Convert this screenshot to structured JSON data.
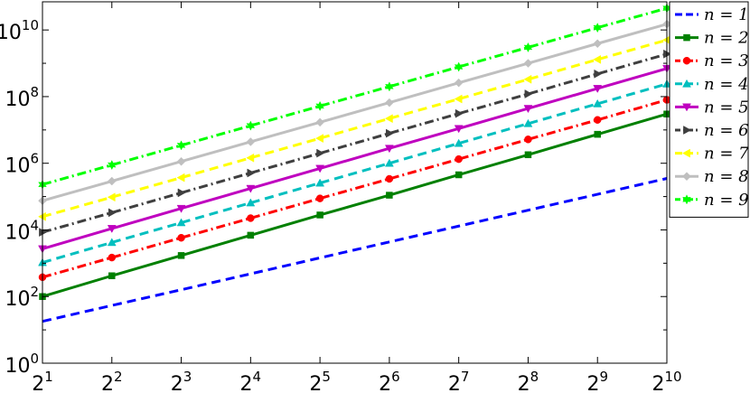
{
  "chart_data": {
    "type": "line",
    "title": "",
    "xlabel": "",
    "ylabel": "",
    "xscale": "log2",
    "yscale": "log10",
    "x": [
      2,
      4,
      8,
      16,
      32,
      64,
      128,
      256,
      512,
      1024
    ],
    "xlim": [
      2,
      1024
    ],
    "ylim": [
      1,
      70000000000
    ],
    "x_tick_labels": [
      {
        "base": "2",
        "exp": "1"
      },
      {
        "base": "2",
        "exp": "2"
      },
      {
        "base": "2",
        "exp": "3"
      },
      {
        "base": "2",
        "exp": "4"
      },
      {
        "base": "2",
        "exp": "5"
      },
      {
        "base": "2",
        "exp": "6"
      },
      {
        "base": "2",
        "exp": "7"
      },
      {
        "base": "2",
        "exp": "8"
      },
      {
        "base": "2",
        "exp": "9"
      },
      {
        "base": "2",
        "exp": "10"
      }
    ],
    "y_tick_labels": [
      {
        "value": 1,
        "base": "10",
        "exp": "0"
      },
      {
        "value": 100,
        "base": "10",
        "exp": "2"
      },
      {
        "value": 10000,
        "base": "10",
        "exp": "4"
      },
      {
        "value": 1000000,
        "base": "10",
        "exp": "6"
      },
      {
        "value": 100000000,
        "base": "10",
        "exp": "8"
      },
      {
        "value": 10000000000,
        "base": "10",
        "exp": "10"
      }
    ],
    "grid": false,
    "legend_position": "outside-right",
    "series": [
      {
        "name": "n = 1",
        "color": "#0000ff",
        "linestyle": "dashed",
        "marker": "none",
        "values": [
          18,
          54,
          160,
          480,
          1450,
          4350,
          13000,
          39000,
          117000,
          350000
        ]
      },
      {
        "name": "n = 2",
        "color": "#008000",
        "linestyle": "solid",
        "marker": "square",
        "values": [
          100,
          420,
          1700,
          6900,
          28000,
          110000,
          450000,
          1800000,
          7400000,
          30000000
        ]
      },
      {
        "name": "n = 3",
        "color": "#ff0000",
        "linestyle": "dashdot",
        "marker": "circle",
        "values": [
          380,
          1480,
          5800,
          22500,
          88000,
          340000,
          1330000,
          5200000,
          20000000,
          80000000
        ]
      },
      {
        "name": "n = 4",
        "color": "#00bfbf",
        "linestyle": "dashed",
        "marker": "triangle-up",
        "values": [
          1050,
          4200,
          16500,
          65000,
          255000,
          1000000,
          3950000,
          15500000,
          61000000,
          240000000
        ]
      },
      {
        "name": "n = 5",
        "color": "#bf00bf",
        "linestyle": "solid",
        "marker": "triangle-down",
        "values": [
          2700,
          11000,
          44000,
          175000,
          700000,
          2800000,
          11000000,
          44000000,
          175000000,
          700000000
        ]
      },
      {
        "name": "n = 6",
        "color": "#3f3f3f",
        "linestyle": "dashdot",
        "marker": "triangle-right",
        "values": [
          8500,
          33000,
          130000,
          510000,
          2000000,
          7900000,
          31000000,
          120000000,
          480000000,
          1900000000
        ]
      },
      {
        "name": "n = 7",
        "color": "#ffff00",
        "linestyle": "dashed",
        "marker": "triangle-left",
        "values": [
          25000,
          96000,
          370000,
          1450000,
          5600000,
          22000000,
          85000000,
          330000000,
          1300000000,
          5000000000
        ]
      },
      {
        "name": "n = 8",
        "color": "#bfbfbf",
        "linestyle": "solid",
        "marker": "diamond",
        "values": [
          75000,
          290000,
          1130000,
          4400000,
          17000000,
          66000000,
          260000000,
          1000000000,
          3900000000,
          15000000000
        ]
      },
      {
        "name": "n = 9",
        "color": "#00ff00",
        "linestyle": "dashdot",
        "marker": "hexagram",
        "values": [
          230000,
          890000,
          3450000,
          13400000,
          52000000,
          200000000,
          780000000,
          3000000000,
          11700000000,
          45000000000
        ]
      }
    ]
  }
}
